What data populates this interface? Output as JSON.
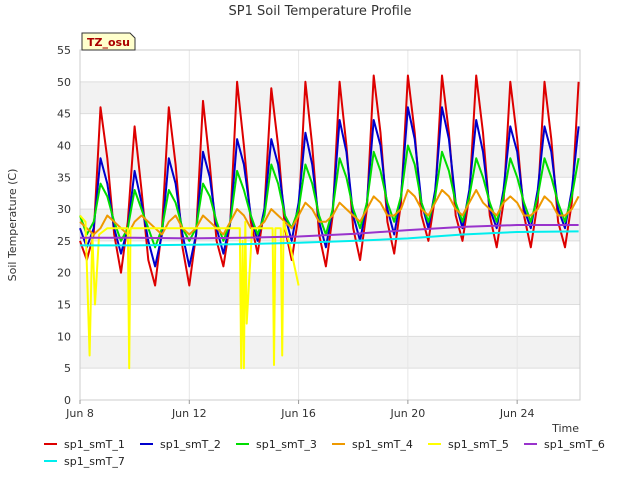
{
  "chart_data": {
    "type": "line",
    "title": "SP1 Soil Temperature Profile",
    "xlabel": "Time",
    "ylabel": "Soil Temperature (C)",
    "badge": "TZ_osu",
    "xlim": [
      0,
      18.3
    ],
    "ylim": [
      0,
      55
    ],
    "x_unit": "days since Jun 8",
    "yticks": [
      0,
      5,
      10,
      15,
      20,
      25,
      30,
      35,
      40,
      45,
      50,
      55
    ],
    "xticks": [
      {
        "label": "Jun 8",
        "x": 0
      },
      {
        "label": "Jun 12",
        "x": 4
      },
      {
        "label": "Jun 16",
        "x": 8
      },
      {
        "label": "Jun 20",
        "x": 12
      },
      {
        "label": "Jun 24",
        "x": 16
      }
    ],
    "legend_position": "bottom",
    "series": [
      {
        "name": "sp1_smT_1",
        "color": "#dd0000",
        "x": [
          0.0,
          0.25,
          0.5,
          0.75,
          1.0,
          1.25,
          1.5,
          1.75,
          2.0,
          2.25,
          2.5,
          2.75,
          3.0,
          3.25,
          3.5,
          3.75,
          4.0,
          4.25,
          4.5,
          4.75,
          5.0,
          5.25,
          5.5,
          5.75,
          6.0,
          6.25,
          6.5,
          6.75,
          7.0,
          7.25,
          7.5,
          7.75,
          8.0,
          8.25,
          8.5,
          8.75,
          9.0,
          9.25,
          9.5,
          9.75,
          10.0,
          10.25,
          10.5,
          10.75,
          11.0,
          11.25,
          11.5,
          11.75,
          12.0,
          12.25,
          12.5,
          12.75,
          13.0,
          13.25,
          13.5,
          13.75,
          14.0,
          14.25,
          14.5,
          14.75,
          15.0,
          15.25,
          15.5,
          15.75,
          16.0,
          16.25,
          16.5,
          16.75,
          17.0,
          17.25,
          17.5,
          17.75,
          18.0,
          18.25
        ],
        "y": [
          25,
          22,
          26,
          46,
          38,
          26,
          20,
          28,
          43,
          33,
          22,
          18,
          27,
          46,
          37,
          24,
          18,
          26,
          47,
          37,
          25,
          21,
          28,
          50,
          40,
          28,
          23,
          30,
          49,
          40,
          27,
          22,
          29,
          50,
          40,
          26,
          21,
          29,
          50,
          40,
          27,
          22,
          30,
          51,
          42,
          28,
          23,
          31,
          51,
          42,
          29,
          25,
          32,
          51,
          42,
          29,
          25,
          32,
          51,
          42,
          29,
          24,
          31,
          50,
          41,
          29,
          24,
          31,
          50,
          41,
          28,
          24,
          31,
          50
        ]
      },
      {
        "name": "sp1_smT_2",
        "color": "#0000cc",
        "x": [
          0.0,
          0.25,
          0.5,
          0.75,
          1.0,
          1.25,
          1.5,
          1.75,
          2.0,
          2.25,
          2.5,
          2.75,
          3.0,
          3.25,
          3.5,
          3.75,
          4.0,
          4.25,
          4.5,
          4.75,
          5.0,
          5.25,
          5.5,
          5.75,
          6.0,
          6.25,
          6.5,
          6.75,
          7.0,
          7.25,
          7.5,
          7.75,
          8.0,
          8.25,
          8.5,
          8.75,
          9.0,
          9.25,
          9.5,
          9.75,
          10.0,
          10.25,
          10.5,
          10.75,
          11.0,
          11.25,
          11.5,
          11.75,
          12.0,
          12.25,
          12.5,
          12.75,
          13.0,
          13.25,
          13.5,
          13.75,
          14.0,
          14.25,
          14.5,
          14.75,
          15.0,
          15.25,
          15.5,
          15.75,
          16.0,
          16.25,
          16.5,
          16.75,
          17.0,
          17.25,
          17.5,
          17.75,
          18.0,
          18.25
        ],
        "y": [
          27,
          24,
          27,
          38,
          34,
          27,
          23,
          27,
          36,
          31,
          25,
          21,
          26,
          38,
          34,
          26,
          21,
          26,
          39,
          35,
          27,
          23,
          28,
          41,
          37,
          29,
          25,
          30,
          41,
          37,
          29,
          25,
          31,
          42,
          37,
          28,
          24,
          30,
          44,
          39,
          29,
          25,
          31,
          44,
          40,
          30,
          26,
          32,
          46,
          41,
          31,
          27,
          33,
          46,
          41,
          31,
          27,
          33,
          44,
          39,
          30,
          27,
          33,
          43,
          39,
          30,
          27,
          33,
          43,
          39,
          30,
          27,
          33,
          43
        ]
      },
      {
        "name": "sp1_smT_3",
        "color": "#00dd00",
        "x": [
          0.0,
          0.25,
          0.5,
          0.75,
          1.0,
          1.25,
          1.5,
          1.75,
          2.0,
          2.25,
          2.5,
          2.75,
          3.0,
          3.25,
          3.5,
          3.75,
          4.0,
          4.25,
          4.5,
          4.75,
          5.0,
          5.25,
          5.5,
          5.75,
          6.0,
          6.25,
          6.5,
          6.75,
          7.0,
          7.25,
          7.5,
          7.75,
          8.0,
          8.25,
          8.5,
          8.75,
          9.0,
          9.25,
          9.5,
          9.75,
          10.0,
          10.25,
          10.5,
          10.75,
          11.0,
          11.25,
          11.5,
          11.75,
          12.0,
          12.25,
          12.5,
          12.75,
          13.0,
          13.25,
          13.5,
          13.75,
          14.0,
          14.25,
          14.5,
          14.75,
          15.0,
          15.25,
          15.5,
          15.75,
          16.0,
          16.25,
          16.5,
          16.75,
          17.0,
          17.25,
          17.5,
          17.75,
          18.0,
          18.25
        ],
        "y": [
          29,
          26,
          28,
          34,
          32,
          28,
          25,
          27,
          33,
          30,
          27,
          24,
          27,
          33,
          31,
          27,
          25,
          27,
          34,
          32,
          28,
          25,
          28,
          36,
          33,
          29,
          26,
          29,
          37,
          34,
          29,
          27,
          30,
          37,
          34,
          29,
          26,
          30,
          38,
          35,
          30,
          27,
          31,
          39,
          36,
          31,
          28,
          32,
          40,
          37,
          31,
          28,
          32,
          39,
          36,
          31,
          28,
          32,
          38,
          35,
          31,
          28,
          32,
          38,
          35,
          31,
          28,
          32,
          38,
          35,
          31,
          28,
          32,
          38
        ]
      },
      {
        "name": "sp1_smT_4",
        "color": "#ee9900",
        "x": [
          0.0,
          0.25,
          0.5,
          0.75,
          1.0,
          1.25,
          1.5,
          1.75,
          2.0,
          2.25,
          2.5,
          2.75,
          3.0,
          3.25,
          3.5,
          3.75,
          4.0,
          4.25,
          4.5,
          4.75,
          5.0,
          5.25,
          5.5,
          5.75,
          6.0,
          6.25,
          6.5,
          6.75,
          7.0,
          7.25,
          7.5,
          7.75,
          8.0,
          8.25,
          8.5,
          8.75,
          9.0,
          9.25,
          9.5,
          9.75,
          10.0,
          10.25,
          10.5,
          10.75,
          11.0,
          11.25,
          11.5,
          11.75,
          12.0,
          12.25,
          12.5,
          12.75,
          13.0,
          13.25,
          13.5,
          13.75,
          14.0,
          14.25,
          14.5,
          14.75,
          15.0,
          15.25,
          15.5,
          15.75,
          16.0,
          16.25,
          16.5,
          16.75,
          17.0,
          17.25,
          17.5,
          17.75,
          18.0,
          18.25
        ],
        "y": [
          28,
          27,
          26,
          27,
          29,
          28,
          27,
          26,
          28,
          29,
          28,
          27,
          26,
          28,
          29,
          27,
          26,
          27,
          29,
          28,
          27,
          26,
          28,
          30,
          29,
          27,
          27,
          28,
          30,
          29,
          28,
          27,
          29,
          31,
          30,
          28,
          28,
          29,
          31,
          30,
          29,
          28,
          30,
          32,
          31,
          29,
          29,
          30,
          33,
          32,
          30,
          29,
          31,
          33,
          32,
          30,
          29,
          31,
          33,
          31,
          30,
          29,
          31,
          32,
          31,
          29,
          29,
          30,
          32,
          31,
          29,
          29,
          30,
          32
        ]
      },
      {
        "name": "sp1_smT_5",
        "color": "#ffff00",
        "x": [
          0.0,
          0.2,
          0.35,
          0.45,
          0.55,
          0.7,
          1.0,
          1.3,
          1.6,
          1.75,
          1.8,
          1.85,
          2.0,
          2.5,
          3.0,
          3.5,
          4.0,
          4.5,
          5.0,
          5.5,
          5.85,
          5.9,
          5.95,
          6.0,
          6.05,
          6.1,
          6.3,
          6.6,
          6.9,
          7.05,
          7.1,
          7.15,
          7.35,
          7.4,
          7.45,
          7.7,
          8.0
        ],
        "y": [
          29,
          28,
          7,
          26,
          15,
          26,
          27,
          27,
          27,
          27,
          5,
          27,
          27,
          27,
          27,
          27,
          27,
          27,
          27,
          27,
          27,
          5,
          25,
          5,
          28,
          12,
          27,
          27,
          27,
          27,
          5.5,
          27,
          27,
          7,
          28,
          24,
          18
        ]
      },
      {
        "name": "sp1_smT_6",
        "color": "#9933cc",
        "x": [
          0.0,
          2.0,
          4.0,
          6.0,
          8.0,
          10.0,
          12.0,
          14.0,
          16.0,
          18.25
        ],
        "y": [
          25.5,
          25.5,
          25.4,
          25.5,
          25.7,
          26.1,
          26.7,
          27.2,
          27.5,
          27.5
        ]
      },
      {
        "name": "sp1_smT_7",
        "color": "#00eeee",
        "x": [
          0.0,
          2.0,
          4.0,
          6.0,
          8.0,
          10.0,
          12.0,
          14.0,
          16.0,
          18.25
        ],
        "y": [
          24.3,
          24.3,
          24.4,
          24.5,
          24.7,
          25.0,
          25.4,
          26.0,
          26.4,
          26.5
        ]
      }
    ]
  }
}
